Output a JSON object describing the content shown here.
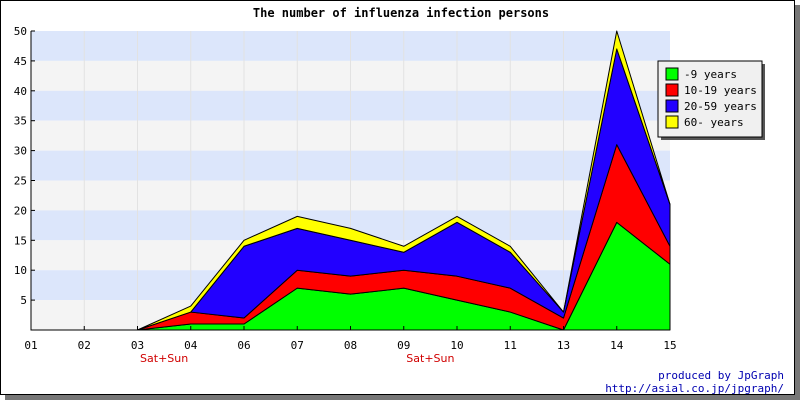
{
  "chart_data": {
    "type": "area",
    "stacked": true,
    "title": "The number of influenza infection persons",
    "categories": [
      "01",
      "02",
      "03",
      "04",
      "06",
      "07",
      "08",
      "09",
      "10",
      "11",
      "13",
      "14",
      "15"
    ],
    "category_notes": [
      {
        "category": "03",
        "text": "Sat+Sun"
      },
      {
        "category": "09",
        "text": "Sat+Sun"
      }
    ],
    "ylim": [
      0,
      50
    ],
    "yticks": [
      5,
      10,
      15,
      20,
      25,
      30,
      35,
      40,
      45,
      50
    ],
    "grid": true,
    "legend_position": "top-right",
    "series": [
      {
        "name": "-9 years",
        "color": "#00ff00",
        "values": [
          0,
          0,
          0,
          1,
          1,
          7,
          6,
          7,
          5,
          3,
          0,
          18,
          11
        ]
      },
      {
        "name": "10-19 years",
        "color": "#ff0000",
        "values": [
          0,
          0,
          0,
          2,
          1,
          3,
          3,
          3,
          4,
          4,
          2,
          13,
          3
        ]
      },
      {
        "name": "20-59 years",
        "color": "#2200ff",
        "values": [
          0,
          0,
          0,
          0,
          12,
          7,
          6,
          3,
          9,
          6,
          1,
          16,
          7
        ]
      },
      {
        "name": "60- years",
        "color": "#ffff00",
        "values": [
          0,
          0,
          0,
          1,
          1,
          2,
          2,
          1,
          1,
          1,
          0,
          3,
          0
        ]
      }
    ]
  },
  "footer": {
    "line1": "produced by JpGraph",
    "line2": "http://asial.co.jp/jpgraph/"
  }
}
